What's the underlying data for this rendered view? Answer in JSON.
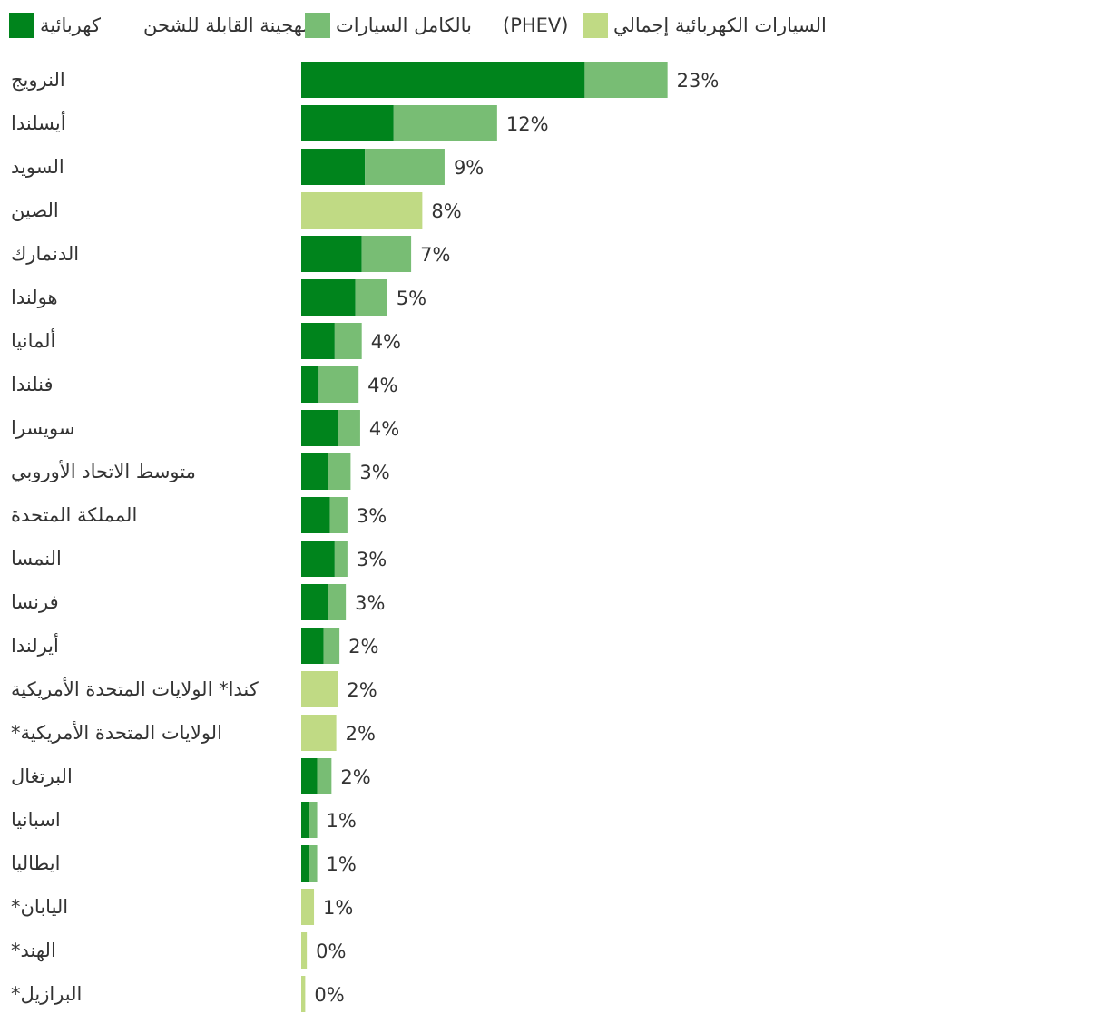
{
  "chart_data": {
    "type": "bar",
    "orientation": "horizontal",
    "stacked": true,
    "legend_position": "top",
    "grid": false,
    "title": "",
    "xlabel": "",
    "ylabel": "",
    "xlim": [
      0,
      25
    ],
    "categories": [
      "النرويج",
      "أيسلندا",
      "السويد",
      "الصين",
      "الدنمارك",
      "هولندا",
      "ألمانيا",
      "فنلندا",
      "سويسرا",
      "متوسط الاتحاد الأوروبي",
      "المملكة المتحدة",
      "النمسا",
      "فرنسا",
      "أيرلندا",
      "كندا* الولايات المتحدة الأمريكية",
      "الولايات المتحدة الأمريكية*",
      "البرتغال",
      "اسبانيا",
      "ايطاليا",
      "اليابان*",
      "الهند*",
      "البرازيل*"
    ],
    "series": [
      {
        "name": "كهربائية",
        "color": "#00841c",
        "values": [
          17.8,
          5.8,
          4.0,
          0,
          3.8,
          3.4,
          2.1,
          1.1,
          2.3,
          1.7,
          1.8,
          2.1,
          1.7,
          1.4,
          0,
          0,
          1.0,
          0.5,
          0.5,
          0,
          0,
          0
        ]
      },
      {
        "name": "الهجينة القابلة للشحن",
        "color": "#78bd74",
        "values": [
          5.2,
          6.5,
          5.0,
          0,
          3.1,
          2.0,
          1.7,
          2.5,
          1.4,
          1.4,
          1.1,
          0.8,
          1.1,
          1.0,
          0,
          0,
          0.9,
          0.5,
          0.5,
          0,
          0,
          0
        ]
      },
      {
        "name": "إجمالي السيارات الكهربائية",
        "color": "#c0da84",
        "values": [
          0,
          0,
          0,
          7.6,
          0,
          0,
          0,
          0,
          0,
          0,
          0,
          0,
          0,
          0,
          2.3,
          2.2,
          0,
          0,
          0,
          0.8,
          0.35,
          0.25
        ]
      }
    ],
    "total_labels": [
      "23%",
      "12%",
      "9%",
      "8%",
      "7%",
      "5%",
      "4%",
      "4%",
      "4%",
      "3%",
      "3%",
      "3%",
      "3%",
      "2%",
      "2%",
      "2%",
      "2%",
      "1%",
      "1%",
      "1%",
      "0%",
      "0%"
    ]
  },
  "legend": {
    "items": [
      {
        "label": "كهربائية",
        "color": "#00841c"
      },
      {
        "label": "الهجينة القابلة للشحن",
        "color": "#78bd74"
      },
      {
        "label": "بالكامل السيارات",
        "color": "#78bd74"
      },
      {
        "label": "(PHEV)",
        "color": "#c0da84"
      },
      {
        "label": "السيارات الكهربائية إجمالي",
        "color": "#c0da84"
      }
    ]
  }
}
